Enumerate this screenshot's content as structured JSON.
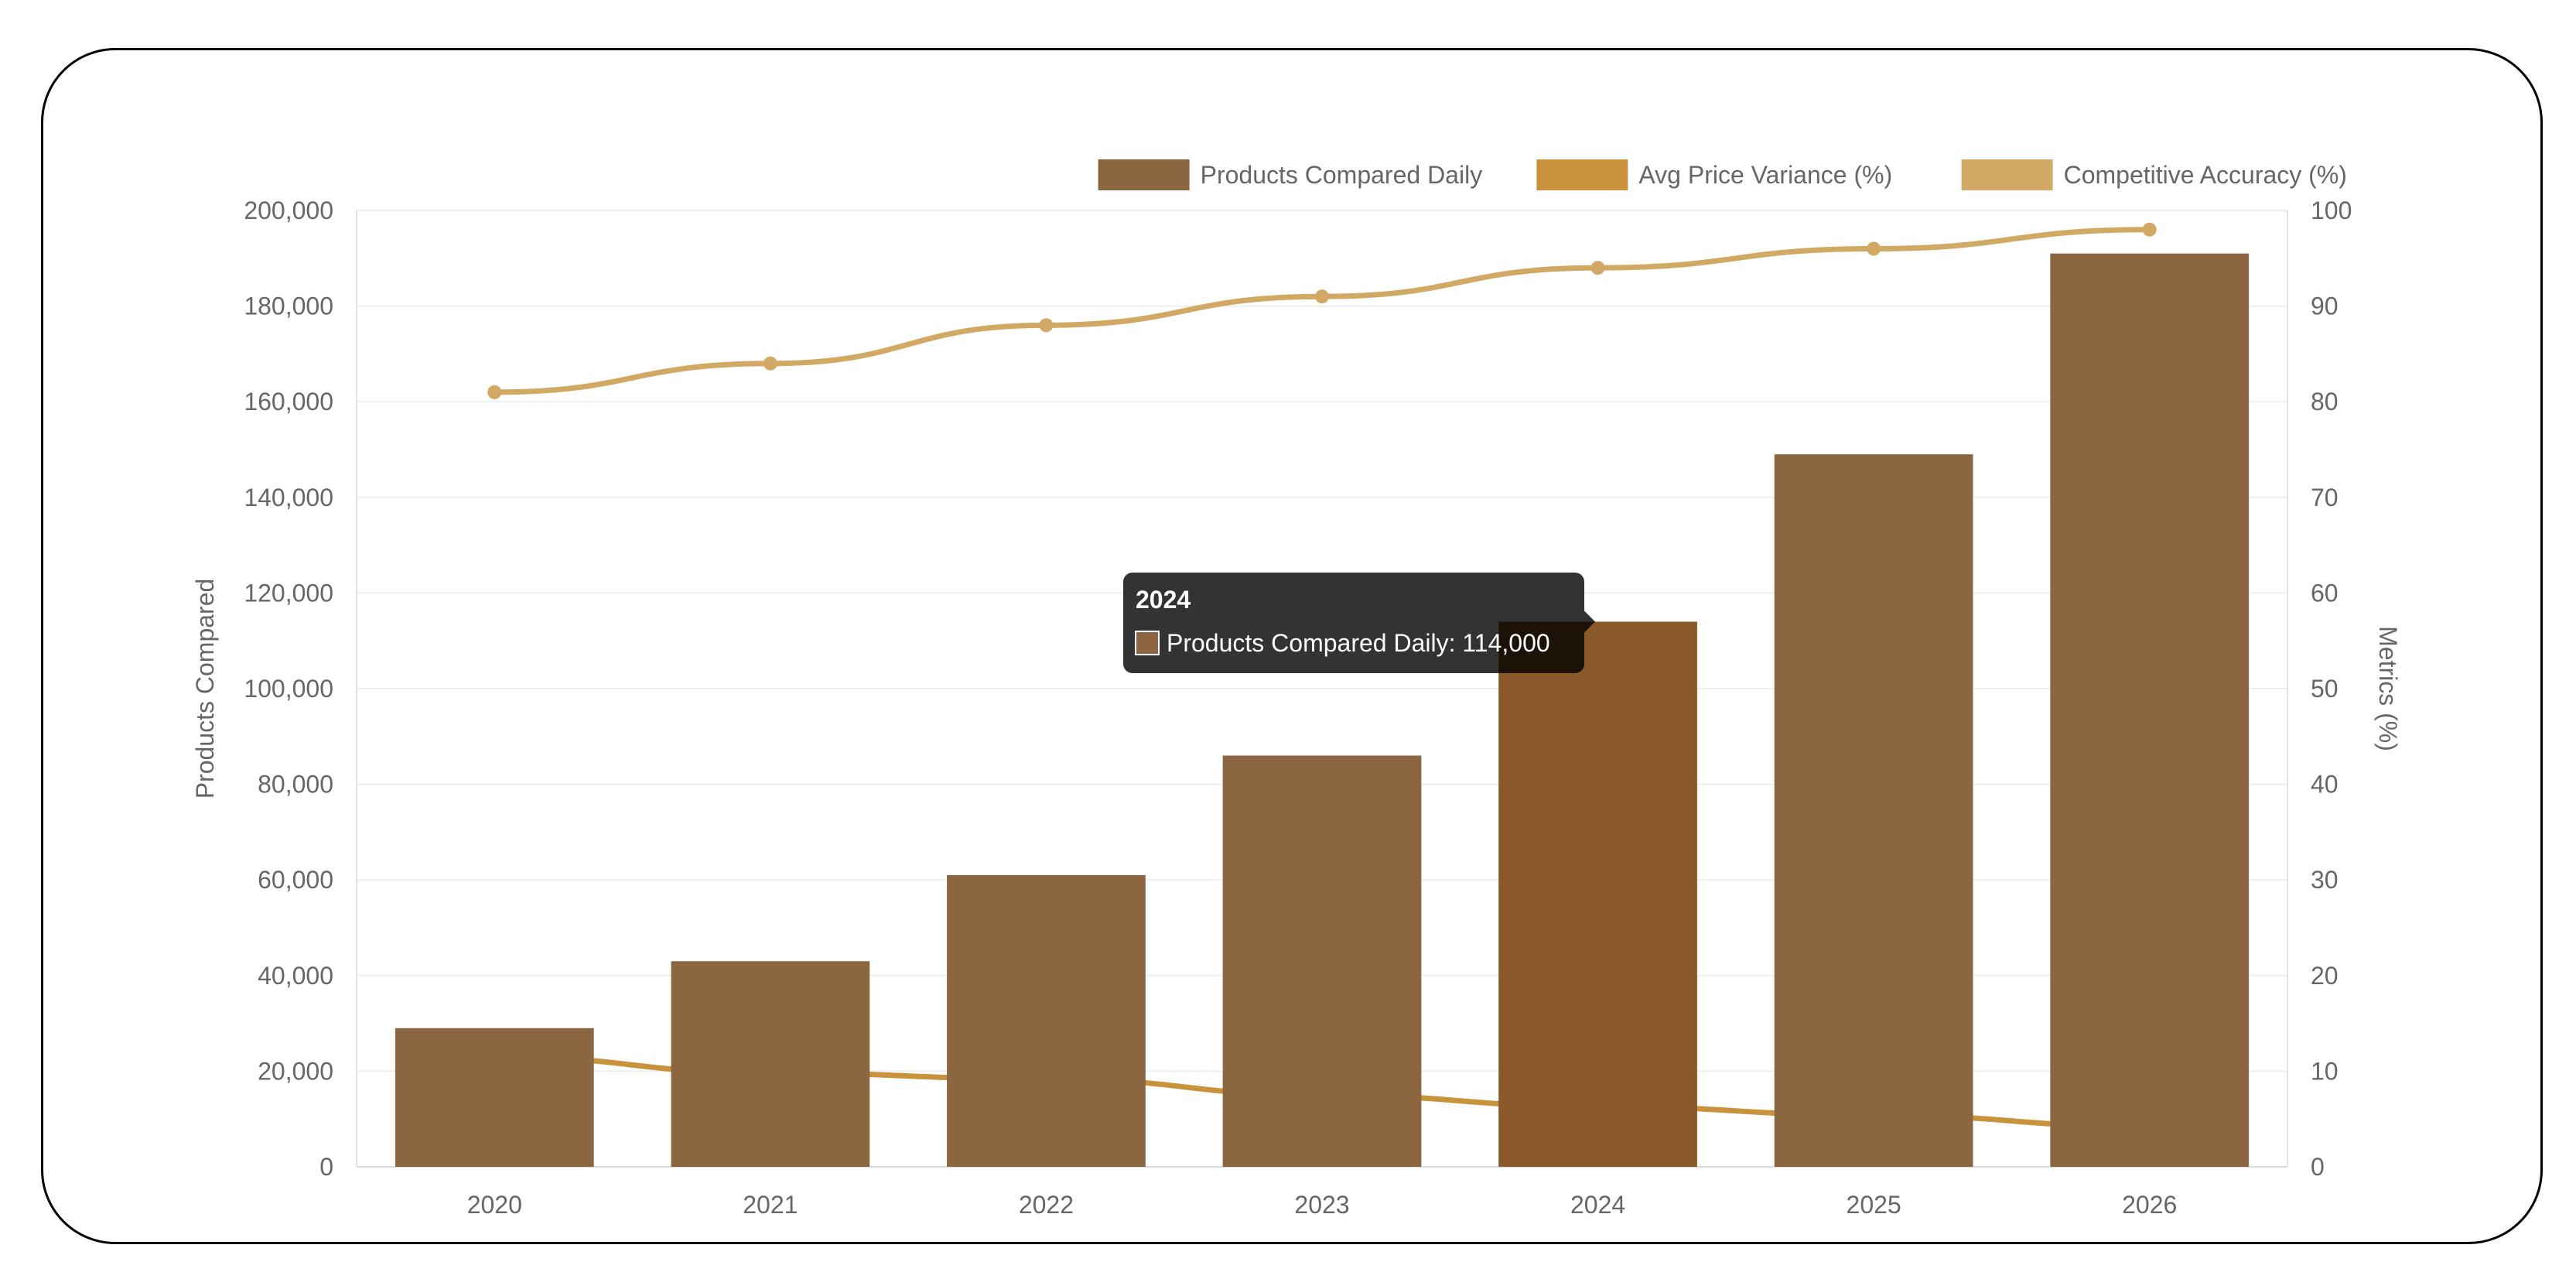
{
  "chart_data": {
    "type": "bar",
    "categories": [
      "2020",
      "2021",
      "2022",
      "2023",
      "2024",
      "2025",
      "2026"
    ],
    "series": [
      {
        "name": "Products Compared Daily",
        "type": "bar",
        "axis": "left",
        "values": [
          29000,
          43000,
          61000,
          86000,
          114000,
          149000,
          191000
        ],
        "color": "#8B6640"
      },
      {
        "name": "Avg Price Variance (%)",
        "type": "line",
        "axis": "right",
        "values": [
          11.5,
          9.8,
          9.2,
          7.5,
          6.3,
          5.4,
          4.2
        ],
        "color": "#C9933D"
      },
      {
        "name": "Competitive Accuracy (%)",
        "type": "line",
        "axis": "right",
        "values": [
          81,
          84,
          88,
          91,
          94,
          96,
          98
        ],
        "color": "#D1A864"
      }
    ],
    "y_left": {
      "label": "Products Compared",
      "min": 0,
      "max": 200000,
      "step": 20000,
      "ticks": [
        "0",
        "20,000",
        "40,000",
        "60,000",
        "80,000",
        "100,000",
        "120,000",
        "140,000",
        "160,000",
        "180,000",
        "200,000"
      ]
    },
    "y_right": {
      "label": "Metrics (%)",
      "min": 0,
      "max": 100,
      "step": 10,
      "ticks": [
        "0",
        "10",
        "20",
        "30",
        "40",
        "50",
        "60",
        "70",
        "80",
        "90",
        "100"
      ]
    },
    "legend_position": "top-right",
    "grid": true,
    "highlight_color": "#8B5A2B",
    "tooltip": {
      "category_index": 4,
      "title": "2024",
      "line": "Products Compared Daily: 114,000"
    }
  }
}
